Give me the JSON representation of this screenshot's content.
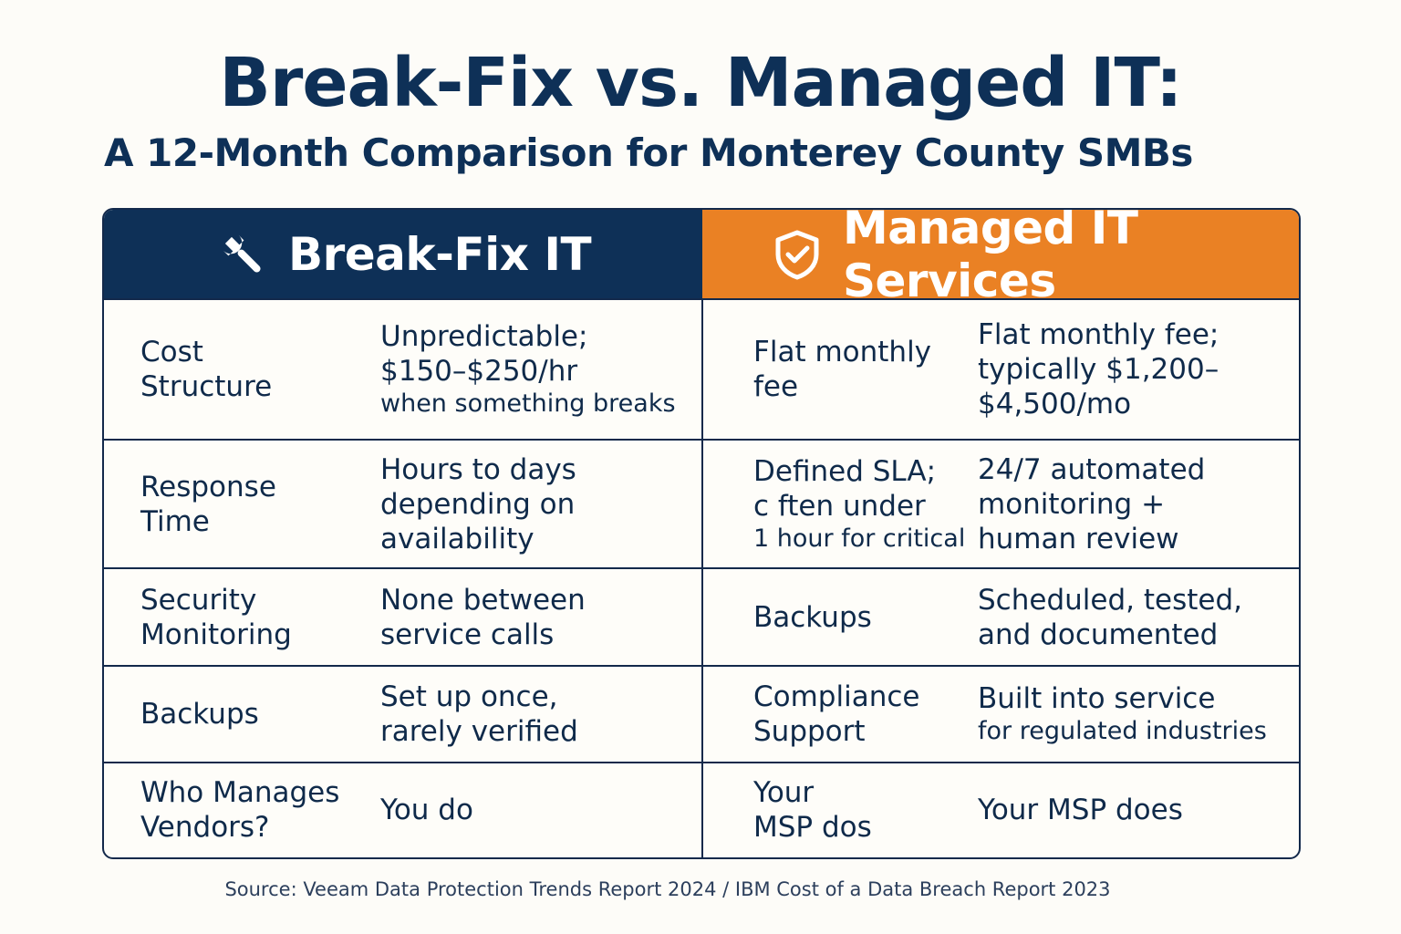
{
  "title": "Break-Fix vs. Managed IT:",
  "subtitle": "A 12-Month Comparison for Monterey County SMBs",
  "colors": {
    "navy": "#0e3057",
    "orange": "#ea8124",
    "background": "#fdfcf8"
  },
  "columns": {
    "left": {
      "label": "Break-Fix IT",
      "icon": "wrench-icon"
    },
    "right": {
      "label": "Managed IT Services",
      "icon": "shield-check-icon"
    }
  },
  "rows": [
    {
      "left_label": [
        "Cost",
        "Structure"
      ],
      "left_value": [
        "Unpredictable;",
        "$150–$250/hr"
      ],
      "left_value_small": "when something breaks",
      "right_label": [
        "Flat monthly",
        "fee"
      ],
      "right_value": [
        "Flat monthly fee;",
        "typically $1,200–",
        "$4,500/mo"
      ]
    },
    {
      "left_label": [
        "Response",
        "Time"
      ],
      "left_value": [
        "Hours to days",
        "depending on",
        "availability"
      ],
      "right_label": [
        "Defined SLA;",
        "ϲ ften under"
      ],
      "right_label_small": "1 hour for critical",
      "right_value": [
        "24/7 automated",
        "monitoring +",
        "human review"
      ]
    },
    {
      "left_label": [
        "Security",
        "Monitoring"
      ],
      "left_value": [
        "None between",
        "service calls"
      ],
      "right_label": [
        "Backups"
      ],
      "right_value": [
        "Scheduled, tested,",
        "and documented"
      ]
    },
    {
      "left_label": [
        "Backups"
      ],
      "left_value": [
        "Set up once,",
        "rarely verified"
      ],
      "right_label": [
        "Compliance",
        "Support"
      ],
      "right_value": [
        "Built into service"
      ],
      "right_value_small": "for regulated industries"
    },
    {
      "left_label": [
        "Who Manages",
        "Vendors?"
      ],
      "left_value": [
        "You do"
      ],
      "right_label": [
        "Your",
        "MSP dos"
      ],
      "right_value": [
        "Your MSP does"
      ]
    }
  ],
  "source": "Source: Veeam Data Protection Trends Report 2024 / IBM Cost of a Data Breach Report 2023"
}
